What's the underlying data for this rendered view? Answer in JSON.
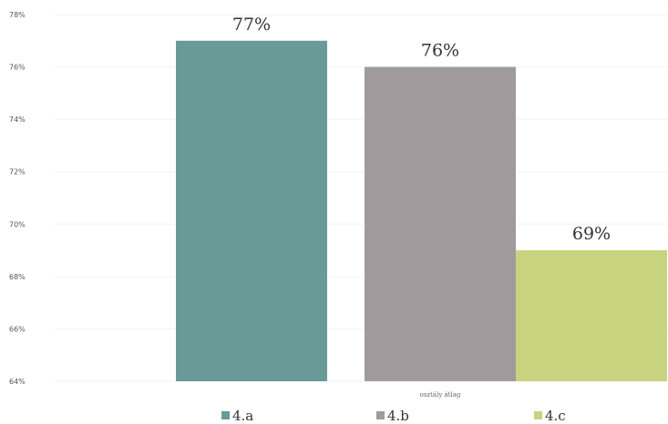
{
  "chart_data": {
    "type": "bar",
    "title": "",
    "xlabel": "osztály átlag",
    "ylabel": "",
    "categories": [
      "4.a",
      "4.b",
      "4.c"
    ],
    "values": [
      77,
      76,
      69
    ],
    "value_labels": [
      "77%",
      "76%",
      "69%"
    ],
    "colors": [
      "#699a98",
      "#a09a9c",
      "#c7d37e"
    ],
    "ylim": [
      64,
      78
    ],
    "yticks": [
      64,
      66,
      68,
      70,
      72,
      74,
      76,
      78
    ],
    "ytick_labels": [
      "64%",
      "66%",
      "68%",
      "70%",
      "72%",
      "74%",
      "76%",
      "78%"
    ],
    "legend": {
      "position": "bottom",
      "entries": [
        "4.a",
        "4.b",
        "4.c"
      ]
    },
    "grid": true
  }
}
